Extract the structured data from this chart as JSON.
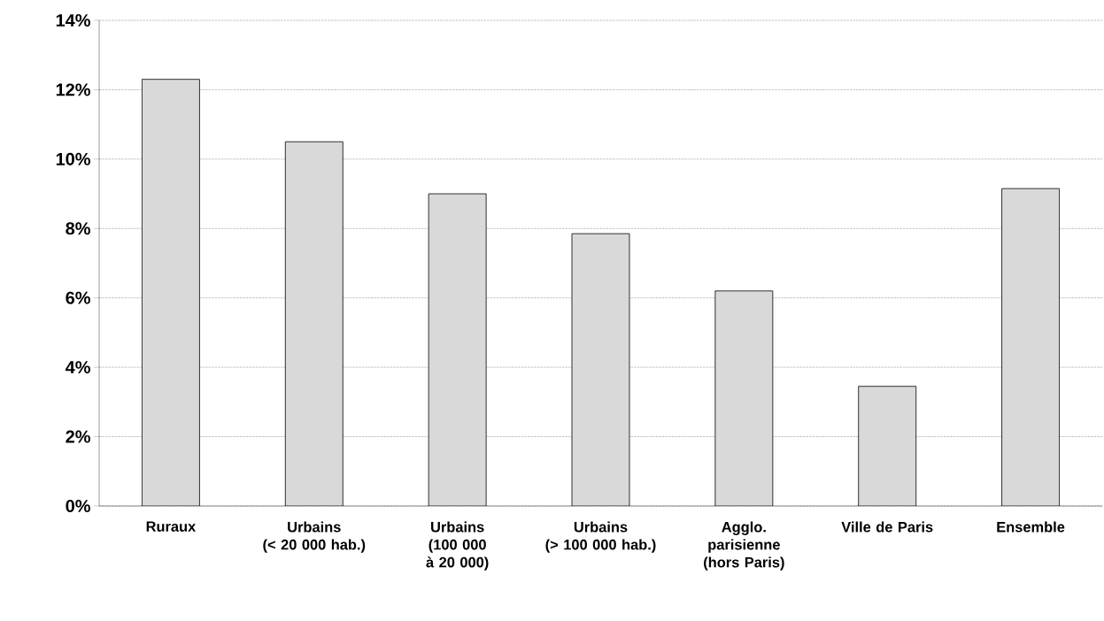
{
  "chart_data": {
    "type": "bar",
    "categories": [
      "Ruraux",
      "Urbains (< 20 000 hab.)",
      "Urbains (100 000 à 20 000)",
      "Urbains (> 100 000 hab.)",
      "Agglo. parisienne (hors Paris)",
      "Ville de Paris",
      "Ensemble"
    ],
    "values": [
      12.3,
      10.5,
      9.0,
      7.85,
      6.2,
      3.45,
      9.15
    ],
    "color": "#d9d9d9",
    "ylim": [
      0,
      14
    ],
    "yticks": [
      {
        "value": 0,
        "label": "0%"
      },
      {
        "value": 2,
        "label": "2%"
      },
      {
        "value": 4,
        "label": "4%"
      },
      {
        "value": 6,
        "label": "6%"
      },
      {
        "value": 8,
        "label": "8%"
      },
      {
        "value": 10,
        "label": "10%"
      },
      {
        "value": 12,
        "label": "12%"
      },
      {
        "value": 14,
        "label": "14%"
      }
    ],
    "grid": "y"
  }
}
